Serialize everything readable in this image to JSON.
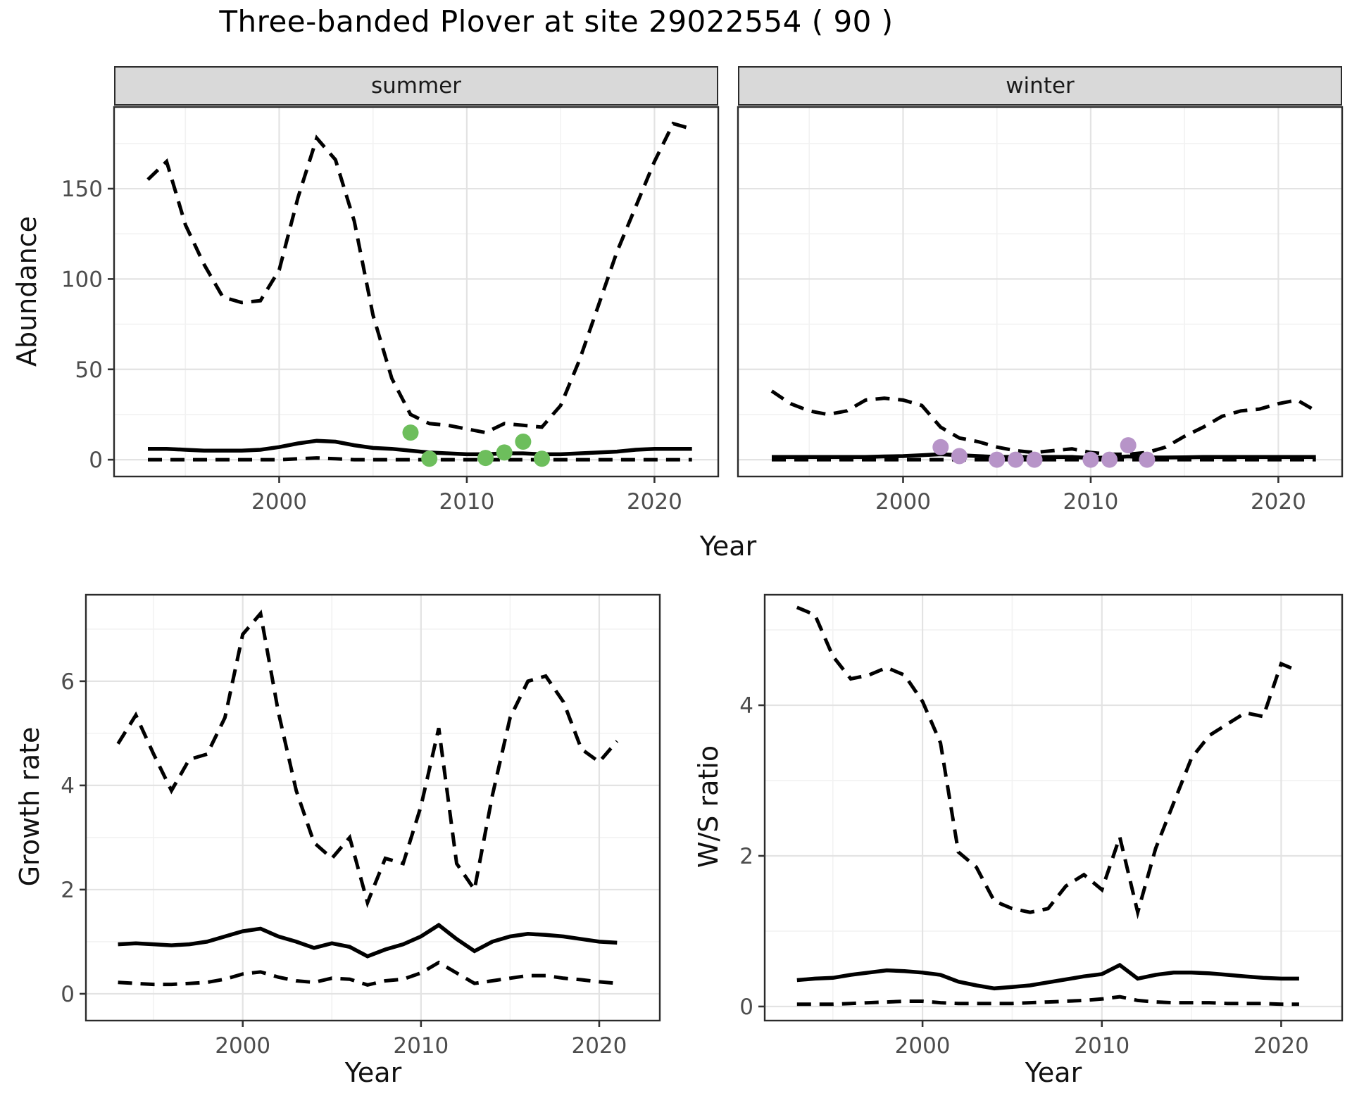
{
  "title": "Three-banded Plover at site 29022554 ( 90 )",
  "colors": {
    "summer_points": "#6dbe5c",
    "winter_points": "#b794c8",
    "line": "#000000",
    "strip_fill": "#d9d9d9",
    "grid_major": "#e3e3e3",
    "grid_minor": "#f2f2f2",
    "tick_label": "#4d4d4d"
  },
  "chart_data": {
    "type": "line",
    "title": "Three-banded Plover at site 29022554 ( 90 )",
    "legend_position": "none",
    "grid": "on",
    "facets": [
      "summer",
      "winter"
    ],
    "panels": [
      {
        "id": "abundance-summer",
        "facet_label": "summer",
        "ylabel": "Abundance",
        "xlabel": "Year",
        "xlim": [
          1991.2,
          2023.4
        ],
        "ylim": [
          -9.3,
          195.2
        ],
        "xticks": [
          2000,
          2010,
          2020
        ],
        "yticks": [
          0,
          50,
          100,
          150
        ],
        "xminor": [
          1995,
          2005,
          2015
        ],
        "yminor": [
          25,
          75,
          125,
          175
        ],
        "years": [
          1993,
          1994,
          1995,
          1996,
          1997,
          1998,
          1999,
          2000,
          2001,
          2002,
          2003,
          2004,
          2005,
          2006,
          2007,
          2008,
          2009,
          2010,
          2011,
          2012,
          2013,
          2014,
          2015,
          2016,
          2017,
          2018,
          2019,
          2020,
          2021,
          2022
        ],
        "series": [
          {
            "name": "upper_ci",
            "style": "dashed",
            "values": [
              155,
              165,
              130,
              108,
              90,
              87,
              88,
              105,
              145,
              178,
              166,
              132,
              80,
              45,
              25,
              20,
              19,
              17,
              15,
              20,
              19,
              18,
              30,
              55,
              85,
              115,
              140,
              165,
              186,
              183
            ]
          },
          {
            "name": "median",
            "style": "solid",
            "values": [
              6,
              6,
              5.5,
              5,
              5,
              5,
              5.5,
              7,
              9,
              10.5,
              10,
              8,
              6.5,
              6,
              5,
              4,
              3.5,
              3,
              3,
              3.5,
              3.5,
              3,
              3,
              3.5,
              4,
              4.5,
              5.5,
              6,
              6,
              6
            ]
          },
          {
            "name": "lower_ci",
            "style": "dashed",
            "values": [
              0,
              0,
              0,
              0,
              0,
              0,
              0,
              0,
              0.5,
              1,
              0.5,
              0,
              0,
              0,
              0,
              0,
              0,
              0,
              0,
              0,
              0,
              0,
              0,
              0,
              0,
              0,
              0,
              0,
              0,
              0
            ]
          }
        ],
        "points": {
          "name": "observed_counts_summer",
          "color": "#6dbe5c",
          "data": [
            [
              2007,
              15
            ],
            [
              2008,
              0.5
            ],
            [
              2011,
              1
            ],
            [
              2012,
              4
            ],
            [
              2013,
              10
            ],
            [
              2014,
              0.5
            ]
          ]
        }
      },
      {
        "id": "abundance-winter",
        "facet_label": "winter",
        "ylabel": "Abundance",
        "xlabel": "Year",
        "xlim": [
          1991.2,
          2023.4
        ],
        "ylim": [
          -9.3,
          195.2
        ],
        "xticks": [
          2000,
          2010,
          2020
        ],
        "yticks": [
          0,
          50,
          100,
          150
        ],
        "xminor": [
          1995,
          2005,
          2015
        ],
        "yminor": [
          25,
          75,
          125,
          175
        ],
        "years": [
          1993,
          1994,
          1995,
          1996,
          1997,
          1998,
          1999,
          2000,
          2001,
          2002,
          2003,
          2004,
          2005,
          2006,
          2007,
          2008,
          2009,
          2010,
          2011,
          2012,
          2013,
          2014,
          2015,
          2016,
          2017,
          2018,
          2019,
          2020,
          2021,
          2022
        ],
        "series": [
          {
            "name": "upper_ci",
            "style": "dashed",
            "values": [
              38,
              31,
              27,
              25,
              27,
              33,
              34,
              33,
              30,
              18,
              12,
              10,
              7,
              5,
              4,
              5,
              6,
              4,
              3,
              3,
              4,
              7,
              13,
              18,
              24,
              27,
              28,
              31,
              33,
              27
            ]
          },
          {
            "name": "median",
            "style": "solid",
            "values": [
              1.5,
              1.5,
              1.5,
              1.5,
              1.5,
              1.5,
              1.8,
              2,
              2.5,
              3,
              2.5,
              2,
              1.5,
              1.5,
              1.5,
              1.5,
              1.5,
              1,
              1.2,
              1.8,
              1.2,
              1.2,
              1.3,
              1.5,
              1.5,
              1.5,
              1.5,
              1.5,
              1.5,
              1.5
            ]
          },
          {
            "name": "lower_ci",
            "style": "dashed",
            "values": [
              0,
              0,
              0,
              0,
              0,
              0,
              0,
              0,
              0,
              0,
              0,
              0,
              0,
              0,
              0,
              0,
              0,
              0,
              0,
              0,
              0,
              0,
              0,
              0,
              0,
              0,
              0,
              0,
              0,
              0
            ]
          }
        ],
        "points": {
          "name": "observed_counts_winter",
          "color": "#b794c8",
          "data": [
            [
              2002,
              7
            ],
            [
              2003,
              2
            ],
            [
              2005,
              0
            ],
            [
              2006,
              0
            ],
            [
              2007,
              0
            ],
            [
              2010,
              0
            ],
            [
              2011,
              0
            ],
            [
              2012,
              8
            ],
            [
              2013,
              0
            ]
          ]
        }
      },
      {
        "id": "growth-rate",
        "facet_label": "",
        "ylabel": "Growth rate",
        "xlabel": "Year",
        "xlim": [
          1991.2,
          2023.4
        ],
        "ylim": [
          -0.514,
          7.66
        ],
        "xticks": [
          2000,
          2010,
          2020
        ],
        "yticks": [
          0,
          2,
          4,
          6
        ],
        "xminor": [
          1995,
          2005,
          2015
        ],
        "yminor": [
          1,
          3,
          5,
          7
        ],
        "years": [
          1993,
          1994,
          1995,
          1996,
          1997,
          1998,
          1999,
          2000,
          2001,
          2002,
          2003,
          2004,
          2005,
          2006,
          2007,
          2008,
          2009,
          2010,
          2011,
          2012,
          2013,
          2014,
          2015,
          2016,
          2017,
          2018,
          2019,
          2020,
          2021
        ],
        "series": [
          {
            "name": "upper_ci",
            "style": "dashed",
            "values": [
              4.8,
              5.35,
              4.6,
              3.9,
              4.5,
              4.6,
              5.3,
              6.9,
              7.3,
              5.4,
              3.9,
              2.9,
              2.6,
              3.0,
              1.75,
              2.6,
              2.5,
              3.6,
              5.1,
              2.5,
              2.0,
              3.8,
              5.3,
              6.0,
              6.1,
              5.6,
              4.7,
              4.45,
              4.85
            ]
          },
          {
            "name": "median",
            "style": "solid",
            "values": [
              0.95,
              0.97,
              0.95,
              0.93,
              0.95,
              1.0,
              1.1,
              1.2,
              1.25,
              1.1,
              1.0,
              0.88,
              0.97,
              0.9,
              0.72,
              0.85,
              0.95,
              1.1,
              1.32,
              1.05,
              0.82,
              1.0,
              1.1,
              1.15,
              1.13,
              1.1,
              1.05,
              1.0,
              0.98
            ]
          },
          {
            "name": "lower_ci",
            "style": "dashed",
            "values": [
              0.22,
              0.2,
              0.18,
              0.18,
              0.2,
              0.22,
              0.28,
              0.38,
              0.42,
              0.32,
              0.25,
              0.22,
              0.3,
              0.28,
              0.17,
              0.25,
              0.28,
              0.4,
              0.6,
              0.4,
              0.2,
              0.25,
              0.3,
              0.35,
              0.35,
              0.3,
              0.27,
              0.23,
              0.2
            ]
          }
        ],
        "points": null
      },
      {
        "id": "ws-ratio",
        "facet_label": "",
        "ylabel": "W/S ratio",
        "xlabel": "Year",
        "xlim": [
          1991.2,
          2023.4
        ],
        "ylim": [
          -0.187,
          5.467
        ],
        "xticks": [
          2000,
          2010,
          2020
        ],
        "yticks": [
          0,
          2,
          4
        ],
        "xminor": [
          1995,
          2005,
          2015
        ],
        "yminor": [
          1,
          3,
          5
        ],
        "years": [
          1993,
          1994,
          1995,
          1996,
          1997,
          1998,
          1999,
          2000,
          2001,
          2002,
          2003,
          2004,
          2005,
          2006,
          2007,
          2008,
          2009,
          2010,
          2011,
          2012,
          2013,
          2014,
          2015,
          2016,
          2017,
          2018,
          2019,
          2020,
          2021
        ],
        "series": [
          {
            "name": "upper_ci",
            "style": "dashed",
            "values": [
              5.3,
              5.2,
              4.65,
              4.35,
              4.4,
              4.5,
              4.4,
              4.05,
              3.5,
              2.05,
              1.85,
              1.4,
              1.3,
              1.25,
              1.3,
              1.6,
              1.75,
              1.55,
              2.25,
              1.25,
              2.1,
              2.7,
              3.3,
              3.6,
              3.75,
              3.9,
              3.85,
              4.55,
              4.45
            ]
          },
          {
            "name": "median",
            "style": "solid",
            "values": [
              0.35,
              0.37,
              0.38,
              0.42,
              0.45,
              0.48,
              0.47,
              0.45,
              0.42,
              0.33,
              0.28,
              0.24,
              0.26,
              0.28,
              0.32,
              0.36,
              0.4,
              0.43,
              0.55,
              0.37,
              0.42,
              0.45,
              0.45,
              0.44,
              0.42,
              0.4,
              0.38,
              0.37,
              0.37
            ]
          },
          {
            "name": "lower_ci",
            "style": "dashed",
            "values": [
              0.03,
              0.03,
              0.03,
              0.04,
              0.05,
              0.06,
              0.07,
              0.07,
              0.05,
              0.04,
              0.04,
              0.04,
              0.04,
              0.05,
              0.06,
              0.07,
              0.08,
              0.1,
              0.13,
              0.08,
              0.06,
              0.05,
              0.05,
              0.05,
              0.04,
              0.04,
              0.04,
              0.03,
              0.03
            ]
          }
        ],
        "points": null
      }
    ]
  }
}
